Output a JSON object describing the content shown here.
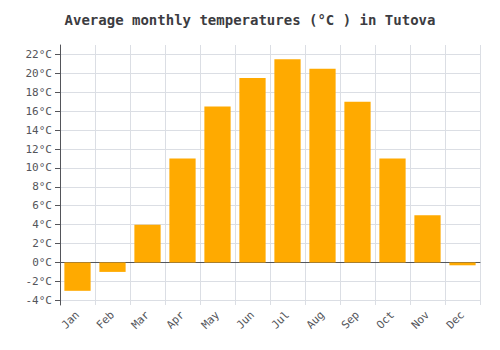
{
  "chart_data": {
    "type": "bar",
    "title": "Average monthly temperatures (°C ) in Tutova",
    "categories": [
      "Jan",
      "Feb",
      "Mar",
      "Apr",
      "May",
      "Jun",
      "Jul",
      "Aug",
      "Sep",
      "Oct",
      "Nov",
      "Dec"
    ],
    "values": [
      -3.0,
      -1.0,
      4.0,
      11.0,
      16.5,
      19.5,
      21.5,
      20.5,
      17.0,
      11.0,
      5.0,
      -0.3
    ],
    "color": "#FFAA00",
    "ylim": [
      -4.5,
      23
    ],
    "yticks": [
      {
        "value": -4,
        "label": "-4°C"
      },
      {
        "value": -2,
        "label": "-2°C"
      },
      {
        "value": 0,
        "label": "0°C"
      },
      {
        "value": 2,
        "label": "2°C"
      },
      {
        "value": 4,
        "label": "4°C"
      },
      {
        "value": 6,
        "label": "6°C"
      },
      {
        "value": 8,
        "label": "8°C"
      },
      {
        "value": 10,
        "label": "10°C"
      },
      {
        "value": 12,
        "label": "12°C"
      },
      {
        "value": 14,
        "label": "14°C"
      },
      {
        "value": 16,
        "label": "16°C"
      },
      {
        "value": 18,
        "label": "18°C"
      },
      {
        "value": 20,
        "label": "20°C"
      },
      {
        "value": 22,
        "label": "22°C"
      }
    ],
    "grid": true
  }
}
